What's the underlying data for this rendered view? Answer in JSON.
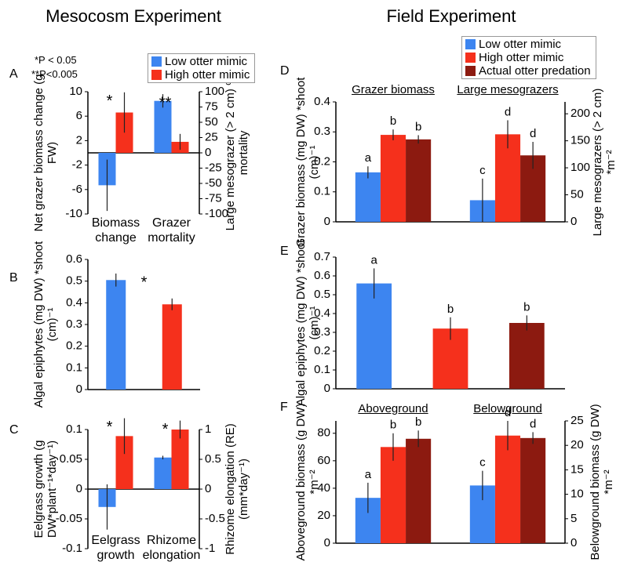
{
  "headers": [
    "Mesocosm Experiment",
    "Field Experiment"
  ],
  "chart_data": [
    {
      "type": "bar",
      "panel": "A",
      "categories": [
        "Biomass change",
        "Grazer mortality"
      ],
      "category_axis": [
        "y",
        "y2"
      ],
      "ylabel": "Net grazer biomass change (g FW)",
      "y2label": "Large mesograzer (> 2 cm) % mortality",
      "ylim": [
        -10,
        10
      ],
      "yticks": [
        -10,
        -6,
        -2,
        2,
        6,
        10
      ],
      "y2lim": [
        -100,
        100
      ],
      "y2ticks": [
        -100,
        -75,
        -50,
        -25,
        0,
        25,
        50,
        75,
        100
      ],
      "series": [
        {
          "name": "Low otter mimic",
          "color": "#3d85f0",
          "values": [
            -5.3,
            85
          ],
          "errors": [
            4.2,
            11
          ]
        },
        {
          "name": "High otter mimic",
          "color": "#f5301c",
          "values": [
            6.6,
            18
          ],
          "errors": [
            3.3,
            13
          ]
        }
      ],
      "annotations": [
        "*",
        "**"
      ],
      "notes": [
        "*P < 0.05",
        "**P<0.005"
      ],
      "legend": "upper right"
    },
    {
      "type": "bar",
      "panel": "B",
      "categories": [
        null
      ],
      "ylabel": "Algal epiphytes (mg DW) *shoot (cm)⁻¹",
      "ylim": [
        0,
        0.6
      ],
      "yticks": [
        0,
        0.1,
        0.2,
        0.3,
        0.4,
        0.5,
        0.6
      ],
      "series": [
        {
          "name": "Low otter mimic",
          "color": "#3d85f0",
          "values": [
            0.505
          ],
          "errors": [
            0.03
          ]
        },
        {
          "name": "High otter mimic",
          "color": "#f5301c",
          "values": [
            0.393
          ],
          "errors": [
            0.027
          ]
        }
      ],
      "annotations": [
        "*"
      ]
    },
    {
      "type": "bar",
      "panel": "C",
      "categories": [
        "Eelgrass growth",
        "Rhizome elongation"
      ],
      "category_axis": [
        "y",
        "y2"
      ],
      "ylabel": "Eelgrass growth (g DW*plant⁻¹*day⁻¹)",
      "y2label": "Rhizome elongation (RE) (mm*day⁻¹)",
      "ylim": [
        -0.1,
        0.1
      ],
      "yticks": [
        -0.1,
        -0.05,
        0,
        0.05,
        0.1
      ],
      "y2lim": [
        -1,
        1
      ],
      "y2ticks": [
        -1,
        -0.5,
        0,
        0.5,
        1
      ],
      "series": [
        {
          "name": "Low otter mimic",
          "color": "#3d85f0",
          "values": [
            -0.03,
            0.53
          ],
          "errors": [
            0.038,
            0.03
          ]
        },
        {
          "name": "High otter mimic",
          "color": "#f5301c",
          "values": [
            0.089,
            1.0
          ],
          "errors": [
            0.03,
            0.15
          ]
        }
      ],
      "annotations": [
        "*",
        "*"
      ]
    },
    {
      "type": "bar",
      "panel": "D",
      "categories": [
        "Grazer biomass",
        "Large mesograzers"
      ],
      "category_axis": [
        "y",
        "y2"
      ],
      "ylabel": "Grazer biomass (mg DW) *shoot (cm)⁻¹",
      "y2label": "Large mesograzers (> 2 cm) *m⁻²",
      "ylim": [
        0,
        0.4
      ],
      "yticks": [
        0,
        0.1,
        0.2,
        0.3,
        0.4
      ],
      "y2lim": [
        0,
        222
      ],
      "y2ticks": [
        0,
        50,
        100,
        150,
        200
      ],
      "series": [
        {
          "name": "Low otter mimic",
          "color": "#3d85f0",
          "values": [
            0.165,
            40
          ],
          "errors": [
            0.02,
            40
          ],
          "bar_labels": [
            "a",
            "c"
          ]
        },
        {
          "name": "High otter mimic",
          "color": "#f5301c",
          "values": [
            0.29,
            162
          ],
          "errors": [
            0.018,
            26
          ],
          "bar_labels": [
            "b",
            "d"
          ]
        },
        {
          "name": "Actual otter predation",
          "color": "#8c1a10",
          "values": [
            0.275,
            123
          ],
          "errors": [
            0.014,
            25
          ],
          "bar_labels": [
            "b",
            "d"
          ]
        }
      ],
      "legend": "upper right"
    },
    {
      "type": "bar",
      "panel": "E",
      "categories": [
        null
      ],
      "ylabel": "Algal epiphytes (mg DW) *shoot (cm)⁻¹",
      "ylim": [
        0,
        0.7
      ],
      "yticks": [
        0,
        0.1,
        0.2,
        0.3,
        0.4,
        0.5,
        0.6,
        0.7
      ],
      "series": [
        {
          "name": "Low otter mimic",
          "color": "#3d85f0",
          "values": [
            0.56
          ],
          "errors": [
            0.08
          ],
          "bar_labels": [
            "a"
          ]
        },
        {
          "name": "High otter mimic",
          "color": "#f5301c",
          "values": [
            0.32
          ],
          "errors": [
            0.06
          ],
          "bar_labels": [
            "b"
          ]
        },
        {
          "name": "Actual otter predation",
          "color": "#8c1a10",
          "values": [
            0.35
          ],
          "errors": [
            0.04
          ],
          "bar_labels": [
            "b"
          ]
        }
      ]
    },
    {
      "type": "bar",
      "panel": "F",
      "categories": [
        "Aboveground",
        "Belowground"
      ],
      "category_axis": [
        "y",
        "y2"
      ],
      "ylabel": "Aboveground biomass (g DW) *m⁻²",
      "y2label": "Belowground biomass (g DW) *m⁻²",
      "ylim": [
        0,
        89
      ],
      "yticks": [
        0,
        20,
        40,
        60,
        80
      ],
      "y2lim": [
        0,
        25
      ],
      "y2ticks": [
        0,
        5,
        10,
        15,
        20,
        25
      ],
      "series": [
        {
          "name": "Low otter mimic",
          "color": "#3d85f0",
          "values": [
            33,
            11.8
          ],
          "errors": [
            11,
            3
          ],
          "bar_labels": [
            "a",
            "c"
          ]
        },
        {
          "name": "High otter mimic",
          "color": "#f5301c",
          "values": [
            70,
            22
          ],
          "errors": [
            10,
            3
          ],
          "bar_labels": [
            "b",
            "d"
          ]
        },
        {
          "name": "Actual otter predation",
          "color": "#8c1a10",
          "values": [
            76,
            21.5
          ],
          "errors": [
            6,
            1.2
          ],
          "bar_labels": [
            "b",
            "d"
          ]
        }
      ]
    }
  ]
}
